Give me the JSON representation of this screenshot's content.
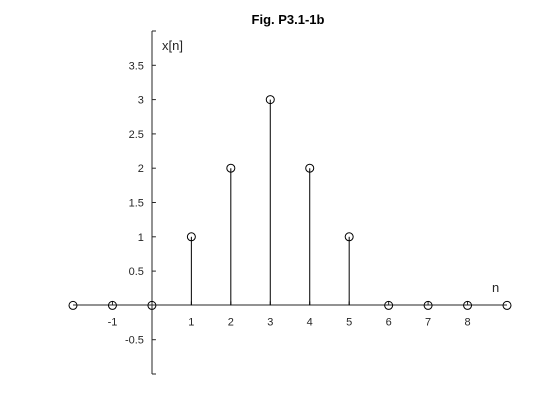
{
  "chart_data": {
    "type": "stem",
    "title": "Fig. P3.1-1b",
    "xlabel": "n",
    "ylabel": "x[n]",
    "x": [
      -2,
      -1,
      0,
      1,
      2,
      3,
      4,
      5,
      6,
      7,
      8,
      9
    ],
    "values": [
      0,
      0,
      0,
      1,
      2,
      3,
      2,
      1,
      0,
      0,
      0,
      0
    ],
    "xlim": [
      -2,
      9
    ],
    "ylim": [
      -1,
      4
    ],
    "x_tick_labels": [
      "-1",
      "1",
      "2",
      "3",
      "4",
      "5",
      "6",
      "7",
      "8"
    ],
    "y_tick_labels": [
      "-0.5",
      "0.5",
      "1",
      "1.5",
      "2",
      "2.5",
      "3",
      "3.5"
    ],
    "grid": false,
    "marker": "open-circle",
    "color": "#000000"
  }
}
